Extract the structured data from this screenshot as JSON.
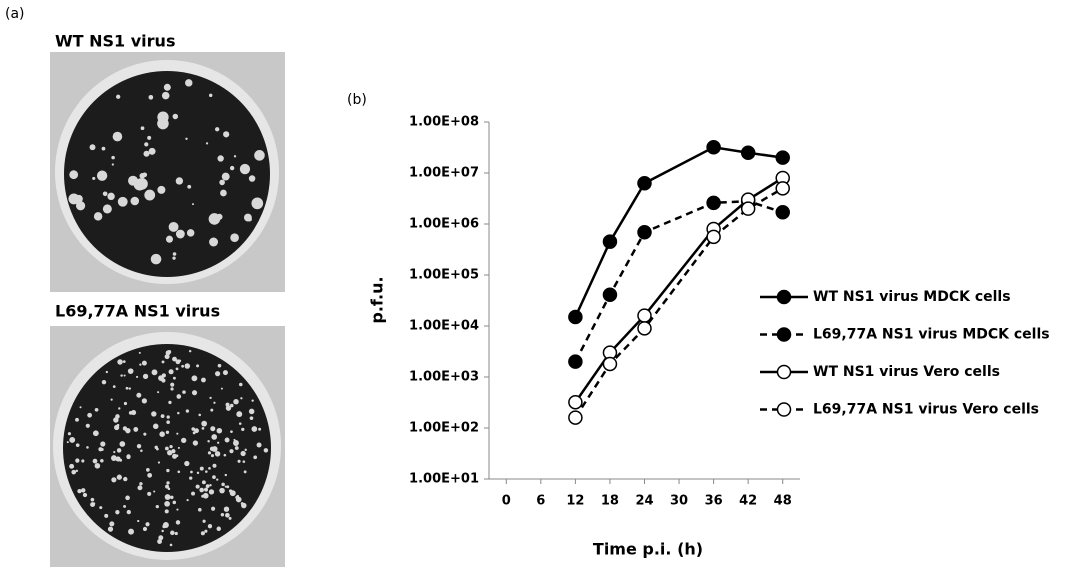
{
  "panel_a": {
    "label": "(a)",
    "photos": [
      {
        "caption": "WT NS1 virus"
      },
      {
        "caption": "L69,77A NS1 virus"
      }
    ]
  },
  "panel_b_label": "(b)",
  "chart_data": {
    "type": "line",
    "x_label": "Time p.i. (h)",
    "y_label": "p.f.u.",
    "y_scale": "log",
    "xlim": [
      -3,
      51
    ],
    "xticks": [
      0,
      6,
      12,
      18,
      24,
      30,
      36,
      42,
      48
    ],
    "ylim": [
      10,
      100000000
    ],
    "yticks": [
      {
        "value": 10,
        "label": "1.00E+01"
      },
      {
        "value": 100,
        "label": "1.00E+02"
      },
      {
        "value": 1000,
        "label": "1.00E+03"
      },
      {
        "value": 10000,
        "label": "1.00E+04"
      },
      {
        "value": 100000,
        "label": "1.00E+05"
      },
      {
        "value": 1000000,
        "label": "1.00E+06"
      },
      {
        "value": 10000000,
        "label": "1.00E+07"
      },
      {
        "value": 100000000,
        "label": "1.00E+08"
      }
    ],
    "x": [
      12,
      18,
      24,
      36,
      42,
      48
    ],
    "legend": "right",
    "series": [
      {
        "name": "WT  NS1 virus MDCK cells",
        "color": "#000000",
        "dashed": false,
        "marker_fill": "#000000",
        "values": [
          15000,
          450000,
          6300000,
          32000000,
          25000000,
          20000000
        ]
      },
      {
        "name": "L69,77A NS1 virus MDCK cells",
        "color": "#000000",
        "dashed": true,
        "marker_fill": "#000000",
        "values": [
          2000,
          41000,
          690000,
          2600000,
          2800000,
          1700000
        ]
      },
      {
        "name": "WT  NS1 virus Vero cells",
        "color": "#000000",
        "dashed": false,
        "marker_fill": "#ffffff",
        "values": [
          320,
          3000,
          16000,
          800000,
          3000000,
          8000000
        ]
      },
      {
        "name": "L69,77A NS1 virus Vero cells",
        "color": "#000000",
        "dashed": true,
        "marker_fill": "#ffffff",
        "values": [
          160,
          1800,
          9000,
          560000,
          2000000,
          5000000
        ]
      }
    ]
  }
}
